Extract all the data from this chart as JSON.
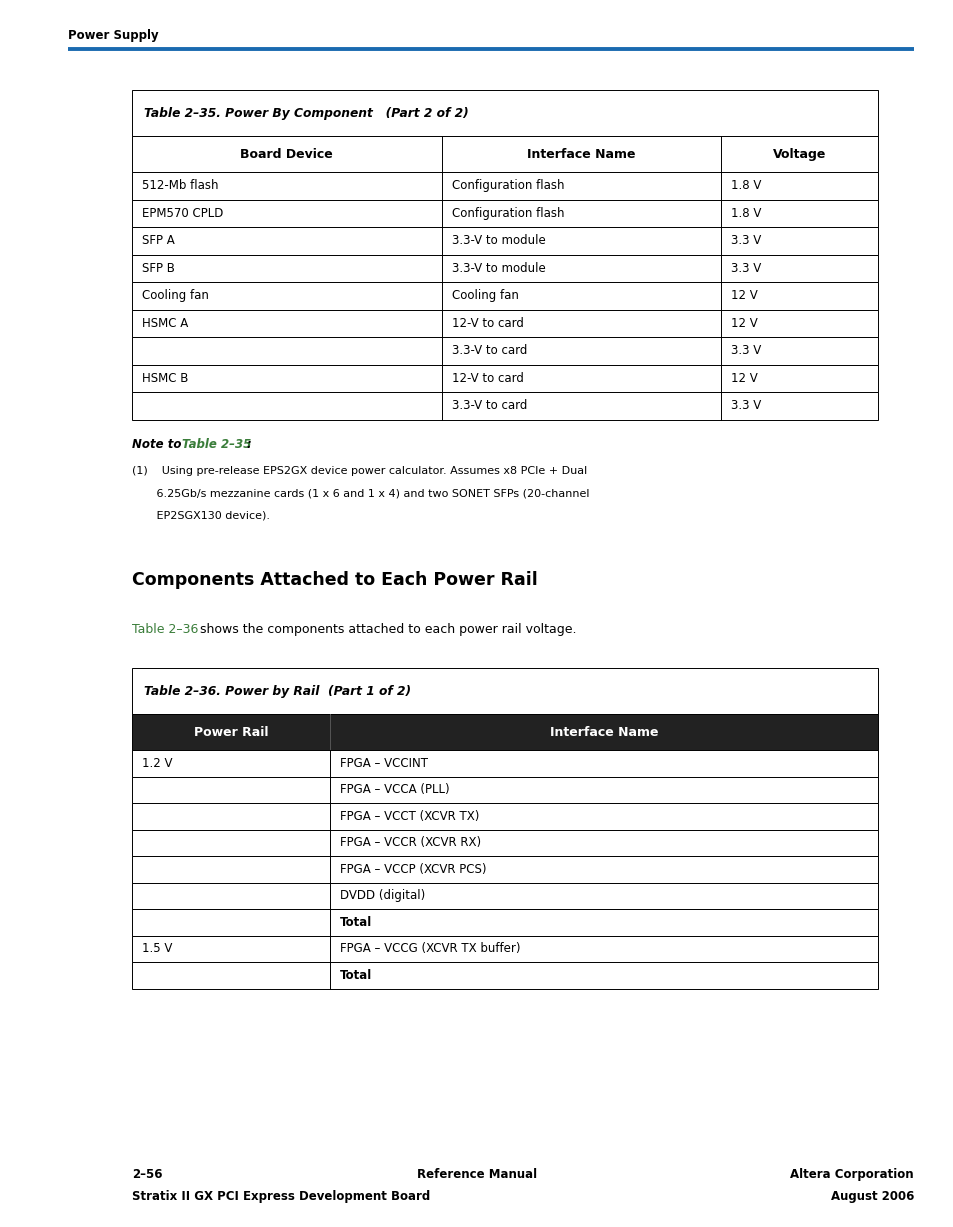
{
  "page_width": 9.54,
  "page_height": 12.27,
  "bg_color": "#ffffff",
  "header_text": "Power Supply",
  "header_line_color": "#1a6ab0",
  "table1_title": "Table 2–35. Power By Component   (Part 2 of 2)",
  "table1_col_headers": [
    "Board Device",
    "Interface Name",
    "Voltage"
  ],
  "table1_rows": [
    [
      "512-Mb flash",
      "Configuration flash",
      "1.8 V"
    ],
    [
      "EPM570 CPLD",
      "Configuration flash",
      "1.8 V"
    ],
    [
      "SFP A",
      "3.3-V to module",
      "3.3 V"
    ],
    [
      "SFP B",
      "3.3-V to module",
      "3.3 V"
    ],
    [
      "Cooling fan",
      "Cooling fan",
      "12 V"
    ],
    [
      "HSMC A",
      "12-V to card",
      "12 V"
    ],
    [
      "",
      "3.3-V to card",
      "3.3 V"
    ],
    [
      "HSMC B",
      "12-V to card",
      "12 V"
    ],
    [
      "",
      "3.3-V to card",
      "3.3 V"
    ]
  ],
  "note_label": "Note to ",
  "note_link": "Table 2–35",
  "note_colon": ":",
  "note_lines": [
    "(1)    Using pre-release EPS2GX device power calculator. Assumes x8 PCIe + Dual",
    "       6.25Gb/s mezzanine cards (1 x 6 and 1 x 4) and two SONET SFPs (20-channel",
    "       EP2SGX130 device)."
  ],
  "section_title": "Components Attached to Each Power Rail",
  "section_para_link": "Table 2–36",
  "section_para_suffix": " shows the components attached to each power rail voltage.",
  "table2_title": "Table 2–36. Power by Rail  (Part 1 of 2)",
  "table2_col_headers": [
    "Power Rail",
    "Interface Name"
  ],
  "table2_rows": [
    [
      "1.2 V",
      "FPGA – VCCINT"
    ],
    [
      "",
      "FPGA – VCCA (PLL)"
    ],
    [
      "",
      "FPGA – VCCT (XCVR TX)"
    ],
    [
      "",
      "FPGA – VCCR (XCVR RX)"
    ],
    [
      "",
      "FPGA – VCCP (XCVR PCS)"
    ],
    [
      "",
      "DVDD (digital)"
    ],
    [
      "",
      "Total"
    ],
    [
      "1.5 V",
      "FPGA – VCCG (XCVR TX buffer)"
    ],
    [
      "",
      "Total"
    ]
  ],
  "table2_bold_rows": [
    6,
    8
  ],
  "footer_left1": "2–56",
  "footer_left2": "Stratix II GX PCI Express Development Board",
  "footer_center1": "Reference Manual",
  "footer_right1": "Altera Corporation",
  "footer_right2": "August 2006",
  "link_color": "#3a7d3a"
}
